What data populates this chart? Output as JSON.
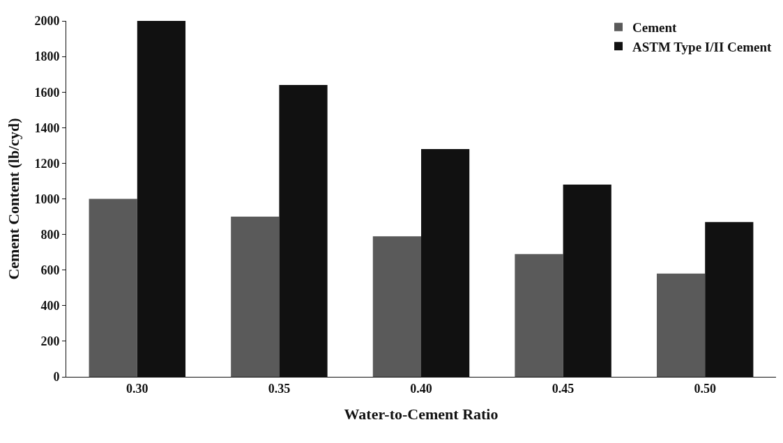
{
  "chart_data": {
    "type": "bar",
    "xlabel": "Water-to-Cement Ratio",
    "ylabel": "Cement Content (lb/cyd)",
    "categories": [
      "0.30",
      "0.35",
      "0.40",
      "0.45",
      "0.50"
    ],
    "series": [
      {
        "name": "Cement",
        "color": "#5a5a5a",
        "values": [
          1000,
          900,
          790,
          690,
          580
        ]
      },
      {
        "name": "ASTM Type I/II Cement",
        "color": "#111111",
        "values": [
          2000,
          1640,
          1280,
          1080,
          870
        ]
      }
    ],
    "ylim": [
      0,
      2000
    ],
    "yticks": [
      0,
      200,
      400,
      600,
      800,
      1000,
      1200,
      1400,
      1600,
      1800,
      2000
    ],
    "legend": "top right"
  }
}
